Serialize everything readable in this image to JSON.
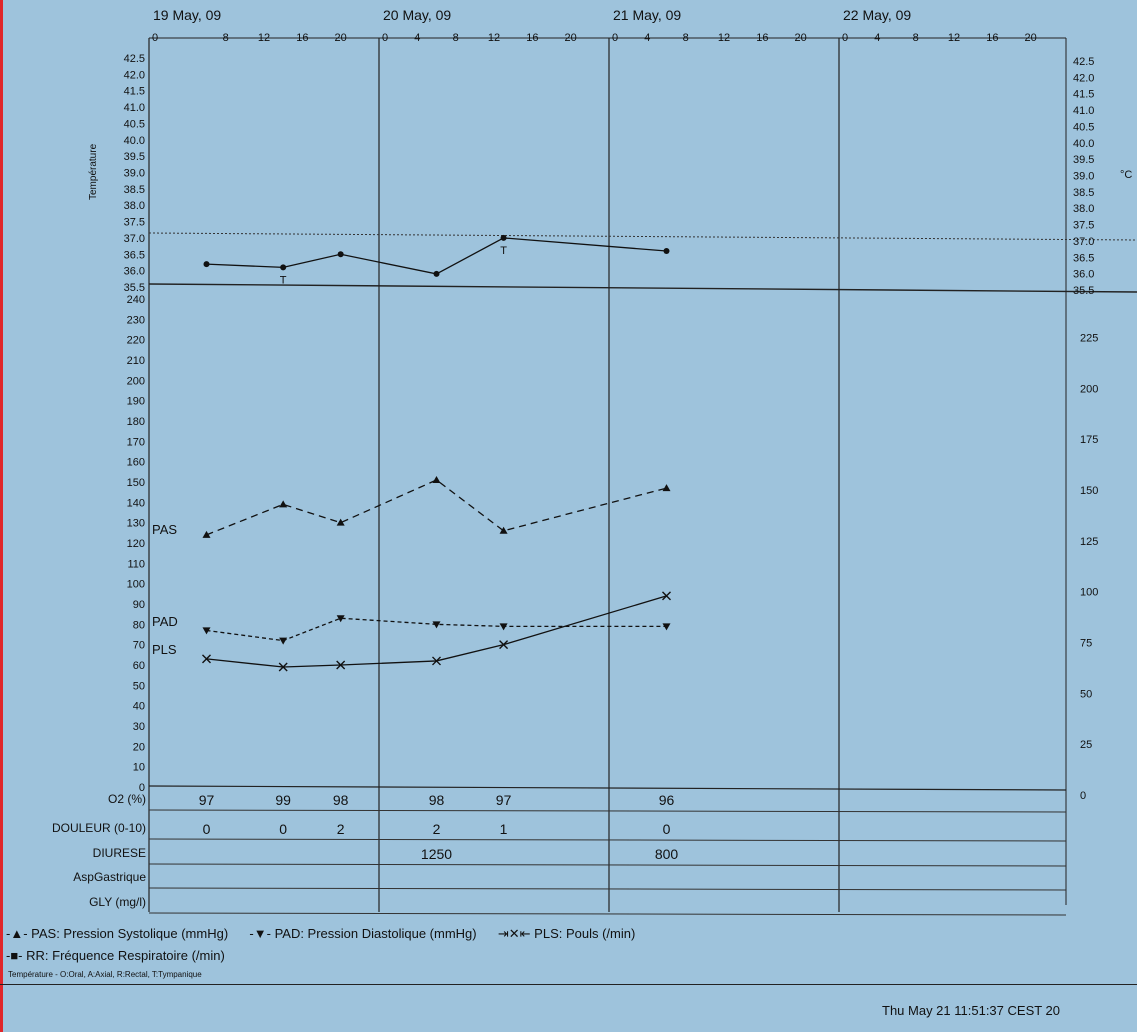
{
  "chart_data": {
    "type": "line",
    "days": [
      "19 May, 09",
      "20 May, 09",
      "21 May, 09",
      "22 May, 09"
    ],
    "hour_ticks": [
      "0",
      "4",
      "8",
      "12",
      "16",
      "20"
    ],
    "hour_ticks_day1": [
      "0",
      "8",
      "12",
      "16",
      "20"
    ],
    "temperature": {
      "axis_label": "Température",
      "unit": "°C",
      "ylim": [
        35.5,
        42.5
      ],
      "ticks": [
        "42.5",
        "42.0",
        "41.5",
        "41.0",
        "40.5",
        "40.0",
        "39.5",
        "39.0",
        "38.5",
        "38.0",
        "37.5",
        "37.0",
        "36.5",
        "36.0",
        "35.5"
      ],
      "reference_line": 37.0,
      "points": [
        {
          "x": "19 May 06:00",
          "y": 36.2,
          "mark": ""
        },
        {
          "x": "19 May 14:00",
          "y": 36.1,
          "mark": "T"
        },
        {
          "x": "19 May 20:00",
          "y": 36.5,
          "mark": ""
        },
        {
          "x": "20 May 06:00",
          "y": 35.9,
          "mark": ""
        },
        {
          "x": "20 May 13:00",
          "y": 37.0,
          "mark": "T"
        },
        {
          "x": "21 May 06:00",
          "y": 36.6,
          "mark": ""
        }
      ]
    },
    "vitals_axis": {
      "ylim": [
        0,
        240
      ],
      "ticks_left": [
        "240",
        "230",
        "220",
        "210",
        "200",
        "190",
        "180",
        "170",
        "160",
        "150",
        "140",
        "130",
        "120",
        "110",
        "100",
        "90",
        "80",
        "70",
        "60",
        "50",
        "40",
        "30",
        "20",
        "10",
        "0"
      ],
      "ticks_right": [
        "225",
        "200",
        "175",
        "150",
        "125",
        "100",
        "75",
        "50",
        "25",
        "0"
      ]
    },
    "series": [
      {
        "name": "PAS",
        "style": "dashed",
        "marker": "triangle-up",
        "x": [
          "19 May 06:00",
          "19 May 14:00",
          "19 May 20:00",
          "20 May 06:00",
          "20 May 13:00",
          "21 May 06:00"
        ],
        "values": [
          124,
          139,
          130,
          151,
          126,
          147
        ]
      },
      {
        "name": "PAD",
        "style": "dotted",
        "marker": "triangle-down",
        "x": [
          "19 May 06:00",
          "19 May 14:00",
          "19 May 20:00",
          "20 May 06:00",
          "20 May 13:00",
          "21 May 06:00"
        ],
        "values": [
          77,
          72,
          83,
          80,
          79,
          79
        ]
      },
      {
        "name": "PLS",
        "style": "solid",
        "marker": "x",
        "x": [
          "19 May 06:00",
          "19 May 14:00",
          "19 May 20:00",
          "20 May 06:00",
          "20 May 13:00",
          "21 May 06:00"
        ],
        "values": [
          63,
          59,
          60,
          62,
          70,
          94
        ]
      }
    ],
    "table": {
      "rows": [
        {
          "label": "O2 (%)",
          "cells": [
            {
              "x": "19 May 06:00",
              "v": "97"
            },
            {
              "x": "19 May 14:00",
              "v": "99"
            },
            {
              "x": "19 May 20:00",
              "v": "98"
            },
            {
              "x": "20 May 06:00",
              "v": "98"
            },
            {
              "x": "20 May 13:00",
              "v": "97"
            },
            {
              "x": "21 May 06:00",
              "v": "96"
            }
          ]
        },
        {
          "label": "DOULEUR (0-10)",
          "cells": [
            {
              "x": "19 May 06:00",
              "v": "0"
            },
            {
              "x": "19 May 14:00",
              "v": "0"
            },
            {
              "x": "19 May 20:00",
              "v": "2"
            },
            {
              "x": "20 May 06:00",
              "v": "2"
            },
            {
              "x": "20 May 13:00",
              "v": "1"
            },
            {
              "x": "21 May 06:00",
              "v": "0"
            }
          ]
        },
        {
          "label": "DIURESE",
          "cells": [
            {
              "x": "20 May 06:00",
              "v": "1250"
            },
            {
              "x": "21 May 06:00",
              "v": "800"
            }
          ]
        },
        {
          "label": "AspGastrique",
          "cells": []
        },
        {
          "label": "GLY (mg/l)",
          "cells": []
        }
      ]
    },
    "legend": [
      {
        "symbol": "-▲-",
        "text": "PAS: Pression Systolique (mmHg)"
      },
      {
        "symbol": "-▼-",
        "text": "PAD: Pression Diastolique (mmHg)"
      },
      {
        "symbol": "⇥✕⇤",
        "text": "PLS: Pouls (/min)"
      },
      {
        "symbol": "-■-",
        "text": "RR: Fréquence Respiratoire (/min)"
      }
    ],
    "footnote": "Température - O:Oral, A:Axial, R:Rectal, T:Tympanique",
    "timestamp": "Thu May 21 11:51:37 CEST 20"
  }
}
